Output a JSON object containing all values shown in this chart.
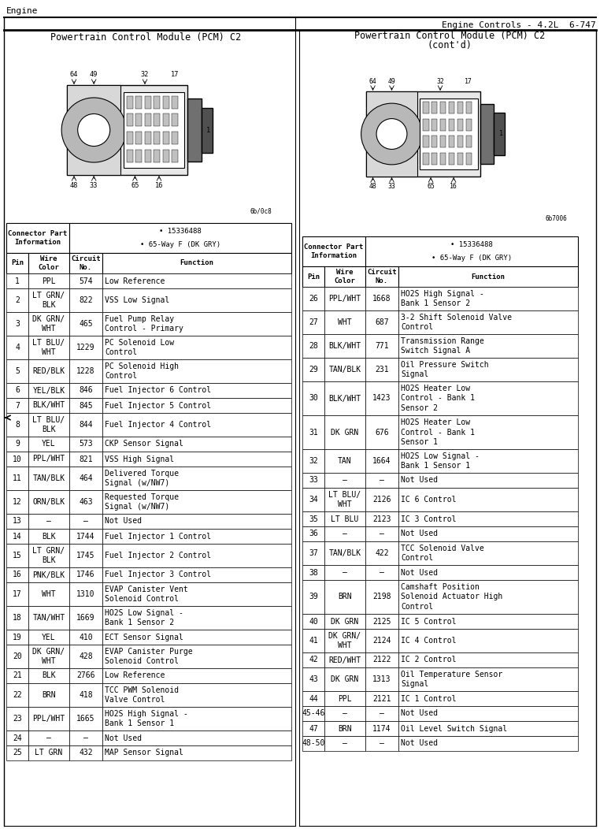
{
  "title_left": "Engine",
  "title_right": "Engine Controls - 4.2L  6-747",
  "subtitle_left": "Powertrain Control Module (PCM) C2",
  "subtitle_right_1": "Powertrain Control Module (PCM) C2",
  "subtitle_right_2": "(cont'd)",
  "connector_info_1": "• 15336488",
  "connector_info_2": "• 65-Way F (DK GRY)",
  "col_headers": [
    "Pin",
    "Wire\nColor",
    "Circuit\nNo.",
    "Function"
  ],
  "left_rows": [
    [
      "1",
      "PPL",
      "574",
      "Low Reference"
    ],
    [
      "2",
      "LT GRN/\nBLK",
      "822",
      "VSS Low Signal"
    ],
    [
      "3",
      "DK GRN/\nWHT",
      "465",
      "Fuel Pump Relay\nControl - Primary"
    ],
    [
      "4",
      "LT BLU/\nWHT",
      "1229",
      "PC Solenoid Low\nControl"
    ],
    [
      "5",
      "RED/BLK",
      "1228",
      "PC Solenoid High\nControl"
    ],
    [
      "6",
      "YEL/BLK",
      "846",
      "Fuel Injector 6 Control"
    ],
    [
      "7",
      "BLK/WHT",
      "845",
      "Fuel Injector 5 Control"
    ],
    [
      "8",
      "LT BLU/\nBLK",
      "844",
      "Fuel Injector 4 Control"
    ],
    [
      "9",
      "YEL",
      "573",
      "CKP Sensor Signal"
    ],
    [
      "10",
      "PPL/WHT",
      "821",
      "VSS High Signal"
    ],
    [
      "11",
      "TAN/BLK",
      "464",
      "Delivered Torque\nSignal (w/NW7)"
    ],
    [
      "12",
      "ORN/BLK",
      "463",
      "Requested Torque\nSignal (w/NW7)"
    ],
    [
      "13",
      "—",
      "—",
      "Not Used"
    ],
    [
      "14",
      "BLK",
      "1744",
      "Fuel Injector 1 Control"
    ],
    [
      "15",
      "LT GRN/\nBLK",
      "1745",
      "Fuel Injector 2 Control"
    ],
    [
      "16",
      "PNK/BLK",
      "1746",
      "Fuel Injector 3 Control"
    ],
    [
      "17",
      "WHT",
      "1310",
      "EVAP Canister Vent\nSolenoid Control"
    ],
    [
      "18",
      "TAN/WHT",
      "1669",
      "HO2S Low Signal -\nBank 1 Sensor 2"
    ],
    [
      "19",
      "YEL",
      "410",
      "ECT Sensor Signal"
    ],
    [
      "20",
      "DK GRN/\nWHT",
      "428",
      "EVAP Canister Purge\nSolenoid Control"
    ],
    [
      "21",
      "BLK",
      "2766",
      "Low Reference"
    ],
    [
      "22",
      "BRN",
      "418",
      "TCC PWM Solenoid\nValve Control"
    ],
    [
      "23",
      "PPL/WHT",
      "1665",
      "HO2S High Signal -\nBank 1 Sensor 1"
    ],
    [
      "24",
      "—",
      "—",
      "Not Used"
    ],
    [
      "25",
      "LT GRN",
      "432",
      "MAP Sensor Signal"
    ]
  ],
  "right_rows": [
    [
      "26",
      "PPL/WHT",
      "1668",
      "HO2S High Signal -\nBank 1 Sensor 2"
    ],
    [
      "27",
      "WHT",
      "687",
      "3-2 Shift Solenoid Valve\nControl"
    ],
    [
      "28",
      "BLK/WHT",
      "771",
      "Transmission Range\nSwitch Signal A"
    ],
    [
      "29",
      "TAN/BLK",
      "231",
      "Oil Pressure Switch\nSignal"
    ],
    [
      "30",
      "BLK/WHT",
      "1423",
      "HO2S Heater Low\nControl - Bank 1\nSensor 2"
    ],
    [
      "31",
      "DK GRN",
      "676",
      "HO2S Heater Low\nControl - Bank 1\nSensor 1"
    ],
    [
      "32",
      "TAN",
      "1664",
      "HO2S Low Signal -\nBank 1 Sensor 1"
    ],
    [
      "33",
      "—",
      "—",
      "Not Used"
    ],
    [
      "34",
      "LT BLU/\nWHT",
      "2126",
      "IC 6 Control"
    ],
    [
      "35",
      "LT BLU",
      "2123",
      "IC 3 Control"
    ],
    [
      "36",
      "—",
      "—",
      "Not Used"
    ],
    [
      "37",
      "TAN/BLK",
      "422",
      "TCC Solenoid Valve\nControl"
    ],
    [
      "38",
      "—",
      "—",
      "Not Used"
    ],
    [
      "39",
      "BRN",
      "2198",
      "Camshaft Position\nSolenoid Actuator High\nControl"
    ],
    [
      "40",
      "DK GRN",
      "2125",
      "IC 5 Control"
    ],
    [
      "41",
      "DK GRN/\nWHT",
      "2124",
      "IC 4 Control"
    ],
    [
      "42",
      "RED/WHT",
      "2122",
      "IC 2 Control"
    ],
    [
      "43",
      "DK GRN",
      "1313",
      "Oil Temperature Sensor\nSignal"
    ],
    [
      "44",
      "PPL",
      "2121",
      "IC 1 Control"
    ],
    [
      "45-46",
      "—",
      "—",
      "Not Used"
    ],
    [
      "47",
      "BRN",
      "1174",
      "Oil Level Switch Signal"
    ],
    [
      "48-50",
      "—",
      "—",
      "Not Used"
    ]
  ]
}
